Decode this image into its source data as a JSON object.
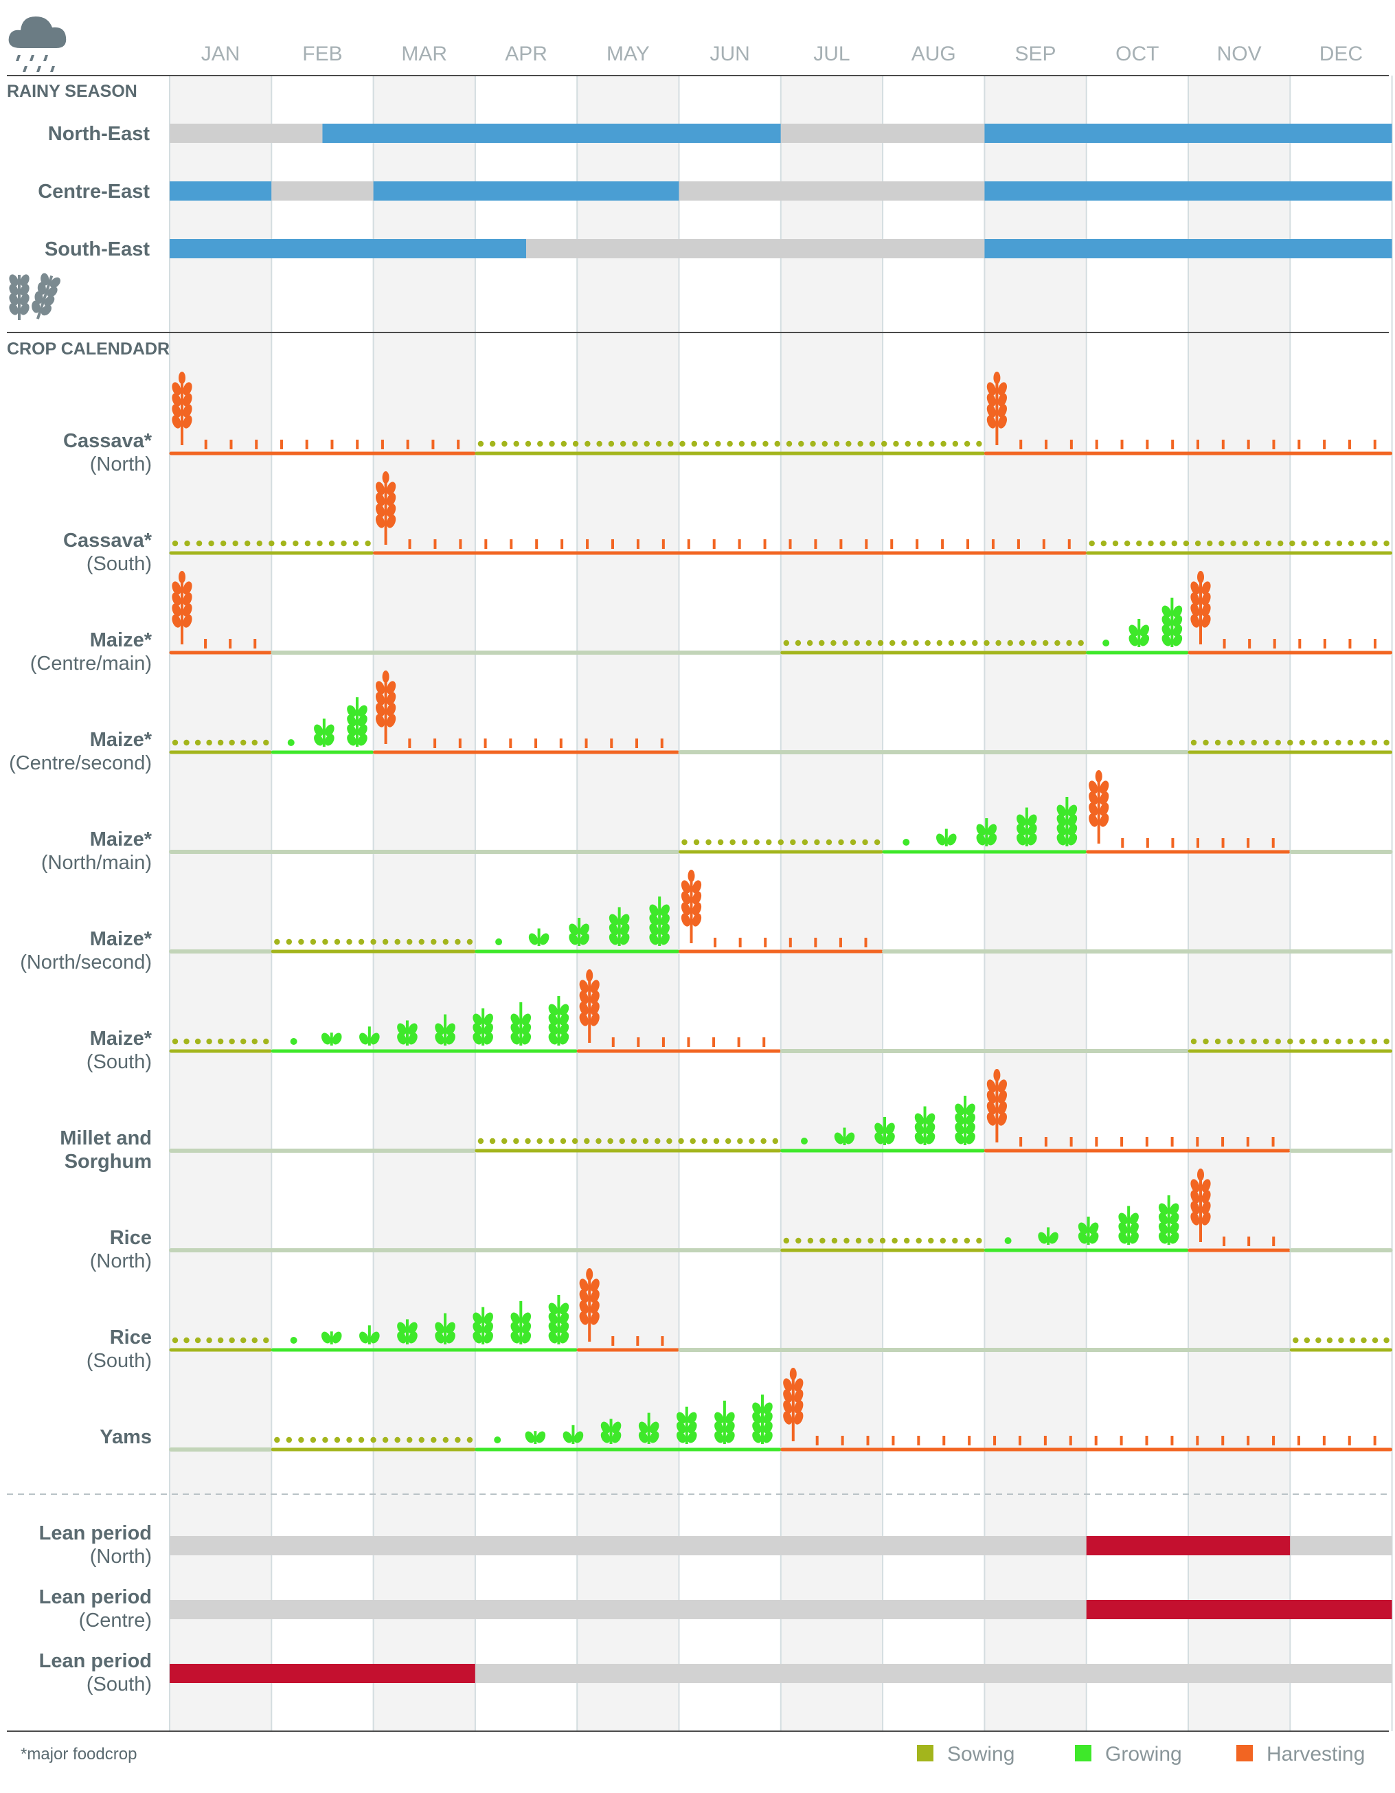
{
  "chart_data": {
    "type": "table",
    "title": "",
    "months": [
      "JAN",
      "FEB",
      "MAR",
      "APR",
      "MAY",
      "JUN",
      "JUL",
      "AUG",
      "SEP",
      "OCT",
      "NOV",
      "DEC"
    ],
    "rainy_season": {
      "label": "RAINY SEASON",
      "rows": [
        {
          "label": "North-East",
          "segments": [
            [
              0,
              1.5,
              "dry"
            ],
            [
              1.5,
              6,
              "rain"
            ],
            [
              6,
              8,
              "dry"
            ],
            [
              8,
              12,
              "rain"
            ]
          ]
        },
        {
          "label": "Centre-East",
          "segments": [
            [
              0,
              1,
              "rain"
            ],
            [
              1,
              2,
              "dry"
            ],
            [
              2,
              5,
              "rain"
            ],
            [
              5,
              8,
              "dry"
            ],
            [
              8,
              12,
              "rain"
            ]
          ]
        },
        {
          "label": "South-East",
          "segments": [
            [
              0,
              3.5,
              "rain"
            ],
            [
              3.5,
              8,
              "dry"
            ],
            [
              8,
              12,
              "rain"
            ]
          ]
        }
      ]
    },
    "crop_calendar": {
      "label": "CROP CALENDADR",
      "rows": [
        {
          "label": "Cassava*",
          "sub": "(North)",
          "segments": [
            [
              0,
              3,
              "harvest"
            ],
            [
              3,
              8,
              "sowing"
            ],
            [
              8,
              12,
              "harvest"
            ]
          ]
        },
        {
          "label": "Cassava*",
          "sub": "(South)",
          "segments": [
            [
              0,
              2,
              "sowing"
            ],
            [
              2,
              9,
              "harvest"
            ],
            [
              9,
              12,
              "sowing"
            ]
          ]
        },
        {
          "label": "Maize*",
          "sub": "(Centre/main)",
          "segments": [
            [
              0,
              1,
              "harvest"
            ],
            [
              1,
              6,
              "none"
            ],
            [
              6,
              9,
              "sowing"
            ],
            [
              9,
              10,
              "growing"
            ],
            [
              10,
              12,
              "harvest"
            ]
          ]
        },
        {
          "label": "Maize*",
          "sub": "(Centre/second)",
          "segments": [
            [
              0,
              1,
              "sowing"
            ],
            [
              1,
              2,
              "growing"
            ],
            [
              2,
              5,
              "harvest"
            ],
            [
              5,
              10,
              "none"
            ],
            [
              10,
              12,
              "sowing"
            ]
          ]
        },
        {
          "label": "Maize*",
          "sub": "(North/main)",
          "segments": [
            [
              0,
              5,
              "none"
            ],
            [
              5,
              7,
              "sowing"
            ],
            [
              7,
              9,
              "growing"
            ],
            [
              9,
              11,
              "harvest"
            ],
            [
              11,
              12,
              "none"
            ]
          ]
        },
        {
          "label": "Maize*",
          "sub": "(North/second)",
          "segments": [
            [
              0,
              1,
              "none"
            ],
            [
              1,
              3,
              "sowing"
            ],
            [
              3,
              5,
              "growing"
            ],
            [
              5,
              7,
              "harvest"
            ],
            [
              7,
              12,
              "none"
            ]
          ]
        },
        {
          "label": "Maize*",
          "sub": "(South)",
          "segments": [
            [
              0,
              1,
              "sowing"
            ],
            [
              1,
              4,
              "growing"
            ],
            [
              4,
              6,
              "harvest"
            ],
            [
              6,
              10,
              "none"
            ],
            [
              10,
              12,
              "sowing"
            ]
          ]
        },
        {
          "label": "Millet and",
          "sub": "Sorghum",
          "subBold": true,
          "segments": [
            [
              0,
              3,
              "none"
            ],
            [
              3,
              6,
              "sowing"
            ],
            [
              6,
              8,
              "growing"
            ],
            [
              8,
              11,
              "harvest"
            ],
            [
              11,
              12,
              "none"
            ]
          ]
        },
        {
          "label": "Rice",
          "sub": "(North)",
          "segments": [
            [
              0,
              6,
              "none"
            ],
            [
              6,
              8,
              "sowing"
            ],
            [
              8,
              10,
              "growing"
            ],
            [
              10,
              11,
              "harvest"
            ],
            [
              11,
              12,
              "none"
            ]
          ]
        },
        {
          "label": "Rice",
          "sub": "(South)",
          "segments": [
            [
              0,
              1,
              "sowing"
            ],
            [
              1,
              4,
              "growing"
            ],
            [
              4,
              5,
              "harvest"
            ],
            [
              5,
              11,
              "none"
            ],
            [
              11,
              12,
              "sowing"
            ]
          ]
        },
        {
          "label": "Yams",
          "sub": "",
          "segments": [
            [
              0,
              1,
              "none"
            ],
            [
              1,
              3,
              "sowing"
            ],
            [
              3,
              6,
              "growing"
            ],
            [
              6,
              12,
              "harvest"
            ]
          ]
        }
      ]
    },
    "lean_period": {
      "rows": [
        {
          "label": "Lean period",
          "sub": "(North)",
          "segments": [
            [
              0,
              9,
              "normal"
            ],
            [
              9,
              11,
              "lean"
            ],
            [
              11,
              12,
              "normal"
            ]
          ]
        },
        {
          "label": "Lean period",
          "sub": "(Centre)",
          "segments": [
            [
              0,
              9,
              "normal"
            ],
            [
              9,
              12,
              "lean"
            ]
          ]
        },
        {
          "label": "Lean period",
          "sub": "(South)",
          "segments": [
            [
              0,
              3,
              "lean"
            ],
            [
              3,
              12,
              "normal"
            ]
          ]
        }
      ]
    },
    "legend": [
      {
        "label": "Sowing",
        "color": "#a3b51c"
      },
      {
        "label": "Growing",
        "color": "#3ee82a"
      },
      {
        "label": "Harvesting",
        "color": "#f26522"
      }
    ],
    "footnote": "*major foodcrop",
    "colors": {
      "rain": "#4a9ed3",
      "dry": "#cfcfcf",
      "sowing": "#a3b51c",
      "growing": "#3ee82a",
      "harvest": "#f26522",
      "none": "#c2d4b8",
      "lean": "#c4102f",
      "normal": "#d2d2d2",
      "label": "#5a6a70",
      "month": "#a6b0b4"
    },
    "icons": {
      "header": "rain-cloud-icon",
      "crop_section": "wheat-icon"
    }
  }
}
